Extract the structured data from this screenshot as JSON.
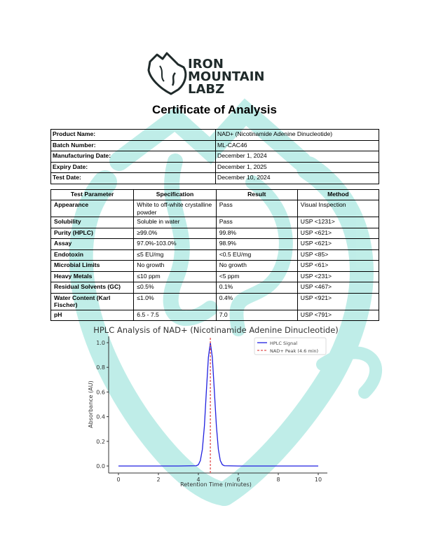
{
  "brand": {
    "name_line1": "IRON",
    "name_line2": "MOUNTAIN",
    "name_line3": "LABZ",
    "watermark_color": "#b5ebe4",
    "logo_color": "#1f2a2a"
  },
  "document": {
    "title": "Certificate of Analysis"
  },
  "product_info": [
    {
      "label": "Product Name:",
      "value": "NAD+ (Nicotinamide Adenine Dinucleotide)"
    },
    {
      "label": "Batch Number:",
      "value": "ML-CAC46"
    },
    {
      "label": "Manufacturing Date:",
      "value": "December 1, 2024"
    },
    {
      "label": "Expiry Date:",
      "value": "December 1, 2025"
    },
    {
      "label": "Test Date:",
      "value": "December 10, 2024"
    }
  ],
  "tests": {
    "headers": [
      "Test Parameter",
      "Specification",
      "Result",
      "Method"
    ],
    "rows": [
      [
        "Appearance",
        "White to off-white crystalline powder",
        "Pass",
        "Visual Inspection"
      ],
      [
        "Solubility",
        "Soluble in water",
        "Pass",
        "USP <1231>"
      ],
      [
        "Purity (HPLC)",
        "≥99.0%",
        "99.8%",
        "USP <621>"
      ],
      [
        "Assay",
        "97.0%-103.0%",
        "98.9%",
        "USP <621>"
      ],
      [
        "Endotoxin",
        "≤5 EU/mg",
        "<0.5 EU/mg",
        "USP <85>"
      ],
      [
        "Microbial Limits",
        "No growth",
        "No growth",
        "USP <61>"
      ],
      [
        "Heavy Metals",
        "≤10 ppm",
        "<5 ppm",
        "USP <231>"
      ],
      [
        "Residual Solvents (GC)",
        "≤0.5%",
        "0.1%",
        "USP <467>"
      ],
      [
        "Water Content (Karl Fischer)",
        "≤1.0%",
        "0.4%",
        "USP <921>"
      ],
      [
        "pH",
        "6.5 - 7.5",
        "7.0",
        "USP <791>"
      ]
    ]
  },
  "chart_data": {
    "type": "line",
    "title": "HPLC Analysis of NAD+ (Nicotinamide Adenine Dinucleotide)",
    "xlabel": "Retention Time (minutes)",
    "ylabel": "Absorbance (AU)",
    "xlim": [
      -0.5,
      10.5
    ],
    "ylim": [
      -0.05,
      1.05
    ],
    "xticks": [
      "0",
      "2",
      "4",
      "6",
      "8",
      "10"
    ],
    "yticks": [
      "0.0",
      "0.2",
      "0.4",
      "0.6",
      "0.8",
      "1.0"
    ],
    "grid": false,
    "legend_position": "top-right",
    "series": [
      {
        "name": "HPLC Signal",
        "color": "#2020e0",
        "x": [
          0,
          1,
          2,
          3,
          3.9,
          4.0,
          4.1,
          4.2,
          4.3,
          4.4,
          4.5,
          4.6,
          4.7,
          4.8,
          4.9,
          5.0,
          5.1,
          5.2,
          5.3,
          6,
          7,
          8,
          9,
          10
        ],
        "y": [
          0,
          0,
          0,
          0,
          0.002,
          0.011,
          0.044,
          0.135,
          0.325,
          0.607,
          0.882,
          1.0,
          0.882,
          0.607,
          0.325,
          0.135,
          0.044,
          0.011,
          0.002,
          0,
          0,
          0,
          0,
          0
        ]
      }
    ],
    "annotations": [
      {
        "name": "NAD+ Peak (4.6 min)",
        "type": "vline",
        "x": 4.6,
        "color": "#e05050"
      }
    ]
  }
}
